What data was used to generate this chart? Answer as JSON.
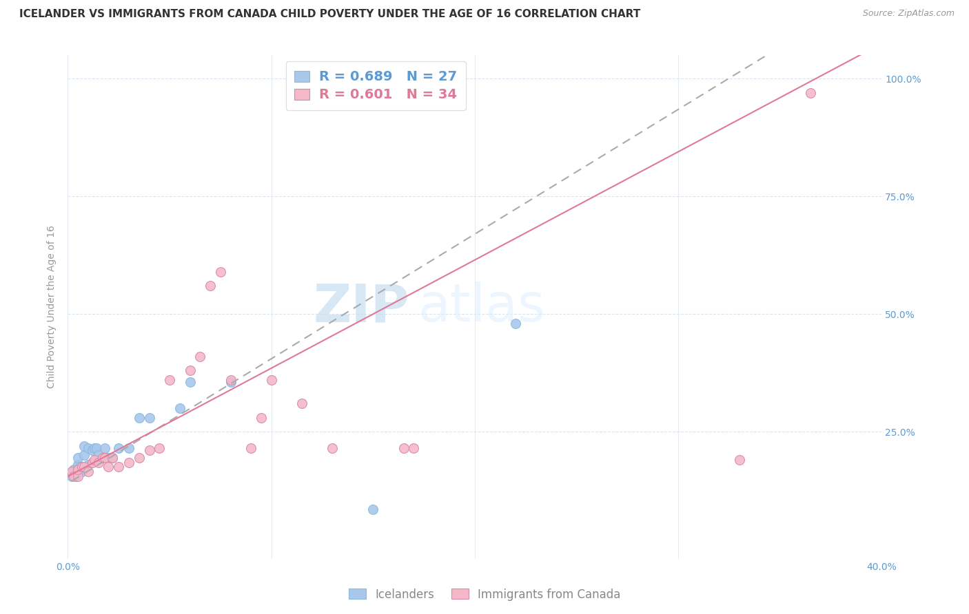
{
  "title": "ICELANDER VS IMMIGRANTS FROM CANADA CHILD POVERTY UNDER THE AGE OF 16 CORRELATION CHART",
  "source": "Source: ZipAtlas.com",
  "ylabel": "Child Poverty Under the Age of 16",
  "xlim": [
    0.0,
    0.4
  ],
  "ylim": [
    -0.02,
    1.05
  ],
  "xticks": [
    0.0,
    0.1,
    0.2,
    0.3,
    0.4
  ],
  "xticklabels": [
    "0.0%",
    "",
    "",
    "",
    "40.0%"
  ],
  "yticks": [
    0.0,
    0.25,
    0.5,
    0.75,
    1.0
  ],
  "yticklabels": [
    "",
    "25.0%",
    "50.0%",
    "75.0%",
    "100.0%"
  ],
  "tick_color": "#5b9bd5",
  "blue_color": "#a8c8ec",
  "pink_color": "#f4b8c8",
  "blue_line_color": "#5b9bd5",
  "pink_line_color": "#e07898",
  "legend_blue_label": "Icelanders",
  "legend_pink_label": "Immigrants from Canada",
  "R_blue": 0.689,
  "N_blue": 27,
  "R_pink": 0.601,
  "N_pink": 34,
  "watermark_zip": "ZIP",
  "watermark_atlas": "atlas",
  "blue_scatter_x": [
    0.002,
    0.003,
    0.004,
    0.005,
    0.005,
    0.006,
    0.007,
    0.008,
    0.008,
    0.01,
    0.01,
    0.012,
    0.013,
    0.014,
    0.015,
    0.018,
    0.02,
    0.022,
    0.025,
    0.03,
    0.035,
    0.04,
    0.055,
    0.06,
    0.08,
    0.15,
    0.22
  ],
  "blue_scatter_y": [
    0.155,
    0.17,
    0.155,
    0.18,
    0.195,
    0.175,
    0.165,
    0.2,
    0.22,
    0.18,
    0.215,
    0.21,
    0.215,
    0.215,
    0.2,
    0.215,
    0.195,
    0.195,
    0.215,
    0.215,
    0.28,
    0.28,
    0.3,
    0.355,
    0.355,
    0.085,
    0.48
  ],
  "pink_scatter_x": [
    0.002,
    0.003,
    0.005,
    0.005,
    0.007,
    0.008,
    0.01,
    0.012,
    0.013,
    0.015,
    0.017,
    0.018,
    0.02,
    0.022,
    0.025,
    0.03,
    0.035,
    0.04,
    0.045,
    0.05,
    0.06,
    0.065,
    0.07,
    0.075,
    0.08,
    0.09,
    0.095,
    0.1,
    0.115,
    0.13,
    0.165,
    0.17,
    0.33,
    0.365
  ],
  "pink_scatter_y": [
    0.165,
    0.155,
    0.155,
    0.17,
    0.175,
    0.175,
    0.165,
    0.185,
    0.19,
    0.185,
    0.195,
    0.195,
    0.175,
    0.195,
    0.175,
    0.185,
    0.195,
    0.21,
    0.215,
    0.36,
    0.38,
    0.41,
    0.56,
    0.59,
    0.36,
    0.215,
    0.28,
    0.36,
    0.31,
    0.215,
    0.215,
    0.215,
    0.19,
    0.97
  ],
  "marker_size": 100,
  "blue_line_intercept": 0.14,
  "blue_line_slope": 2.65,
  "pink_line_intercept": 0.155,
  "pink_line_slope": 2.3,
  "title_fontsize": 11,
  "axis_label_fontsize": 10,
  "tick_fontsize": 10,
  "legend_fontsize": 13,
  "watermark_fontsize_zip": 55,
  "watermark_fontsize_atlas": 55,
  "background_color": "#ffffff",
  "grid_color": "#d8e4f0",
  "source_fontsize": 9
}
